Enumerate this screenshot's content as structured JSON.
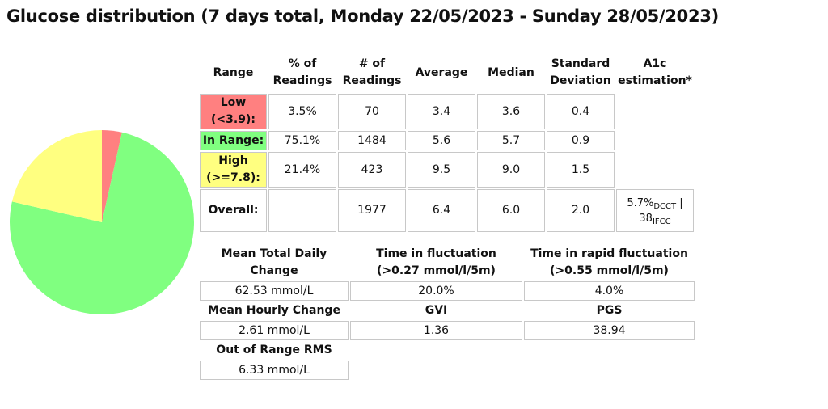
{
  "title": "Glucose distribution (7 days total, Monday 22/05/2023 - Sunday 28/05/2023)",
  "colors": {
    "low": "#ff8080",
    "in_range": "#80ff80",
    "high": "#ffff80"
  },
  "headers": {
    "range": "Range",
    "pct_1": "% of",
    "pct_2": "Readings",
    "num_1": "# of",
    "num_2": "Readings",
    "average": "Average",
    "median": "Median",
    "sd_1": "Standard",
    "sd_2": "Deviation",
    "a1c_1": "A1c",
    "a1c_2": "estimation*"
  },
  "rows": {
    "low": {
      "label_1": "Low",
      "label_2": "(<3.9):",
      "pct": "3.5%",
      "count": "70",
      "avg": "3.4",
      "median": "3.6",
      "sd": "0.4"
    },
    "inrange": {
      "label": "In Range:",
      "pct": "75.1%",
      "count": "1484",
      "avg": "5.6",
      "median": "5.7",
      "sd": "0.9"
    },
    "high": {
      "label_1": "High",
      "label_2": "(>=7.8):",
      "pct": "21.4%",
      "count": "423",
      "avg": "9.5",
      "median": "9.0",
      "sd": "1.5"
    },
    "overall": {
      "label": "Overall:",
      "count": "1977",
      "avg": "6.4",
      "median": "6.0",
      "sd": "2.0",
      "a1c_dcct": "5.7%",
      "a1c_dcct_sub": "DCCT",
      "a1c_sep": " |",
      "a1c_ifcc": "38",
      "a1c_ifcc_sub": "IFCC"
    }
  },
  "flux": {
    "mtdc_1": "Mean Total Daily",
    "mtdc_2": "Change",
    "mtdc_value": "62.53 mmol/L",
    "tif_1": "Time in fluctuation",
    "tif_2": "(>0.27 mmol/l/5m)",
    "tif_value": "20.0%",
    "tirf_1": "Time in rapid fluctuation",
    "tirf_2": "(>0.55 mmol/l/5m)",
    "tirf_value": "4.0%",
    "mhc": "Mean Hourly Change",
    "mhc_value": "2.61 mmol/L",
    "gvi": "GVI",
    "gvi_value": "1.36",
    "pgs": "PGS",
    "pgs_value": "38.94",
    "oor": "Out of Range RMS",
    "oor_value": "6.33 mmol/L"
  },
  "chart_data": {
    "type": "pie",
    "categories": [
      "Low",
      "In Range",
      "High"
    ],
    "values": [
      3.5,
      75.1,
      21.4
    ],
    "colors": [
      "#ff8080",
      "#80ff80",
      "#ffff80"
    ]
  }
}
